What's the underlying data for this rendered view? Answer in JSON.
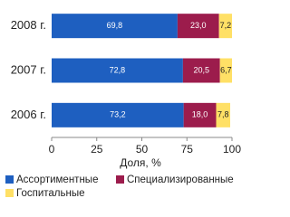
{
  "chart_data": {
    "type": "stacked-bar-horizontal",
    "categories": [
      "2008 г.",
      "2007 г.",
      "2006 г."
    ],
    "series": [
      {
        "name": "Ассортиментные",
        "color": "#1e5fc0",
        "values": [
          69.8,
          72.8,
          73.2
        ],
        "value_labels": [
          "69,8",
          "72,8",
          "73,2"
        ]
      },
      {
        "name": "Специализированные",
        "color": "#9c1c4c",
        "values": [
          23.0,
          20.5,
          18.0
        ],
        "value_labels": [
          "23,0",
          "20,5",
          "18,0"
        ]
      },
      {
        "name": "Госпитальные",
        "color": "#ffe066",
        "values": [
          7.2,
          6.7,
          7.8
        ],
        "value_labels": [
          "7,2",
          "6,7",
          "7,8"
        ]
      }
    ],
    "x_label": "Доля, %",
    "xlim": [
      0,
      100
    ],
    "xticks": [
      0,
      25,
      50,
      75,
      100
    ]
  }
}
